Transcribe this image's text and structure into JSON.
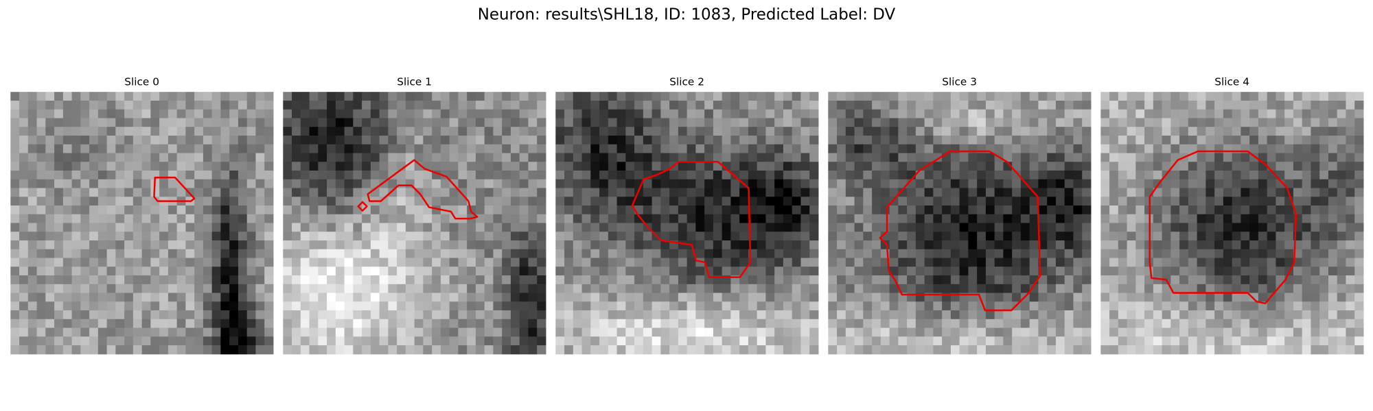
{
  "title": "Neuron: results\\SHL18, ID: 1083, Predicted Label: DV",
  "panels": [
    {
      "title": "Slice 0"
    },
    {
      "title": "Slice 1"
    },
    {
      "title": "Slice 2"
    },
    {
      "title": "Slice 3"
    },
    {
      "title": "Slice 4"
    }
  ]
}
